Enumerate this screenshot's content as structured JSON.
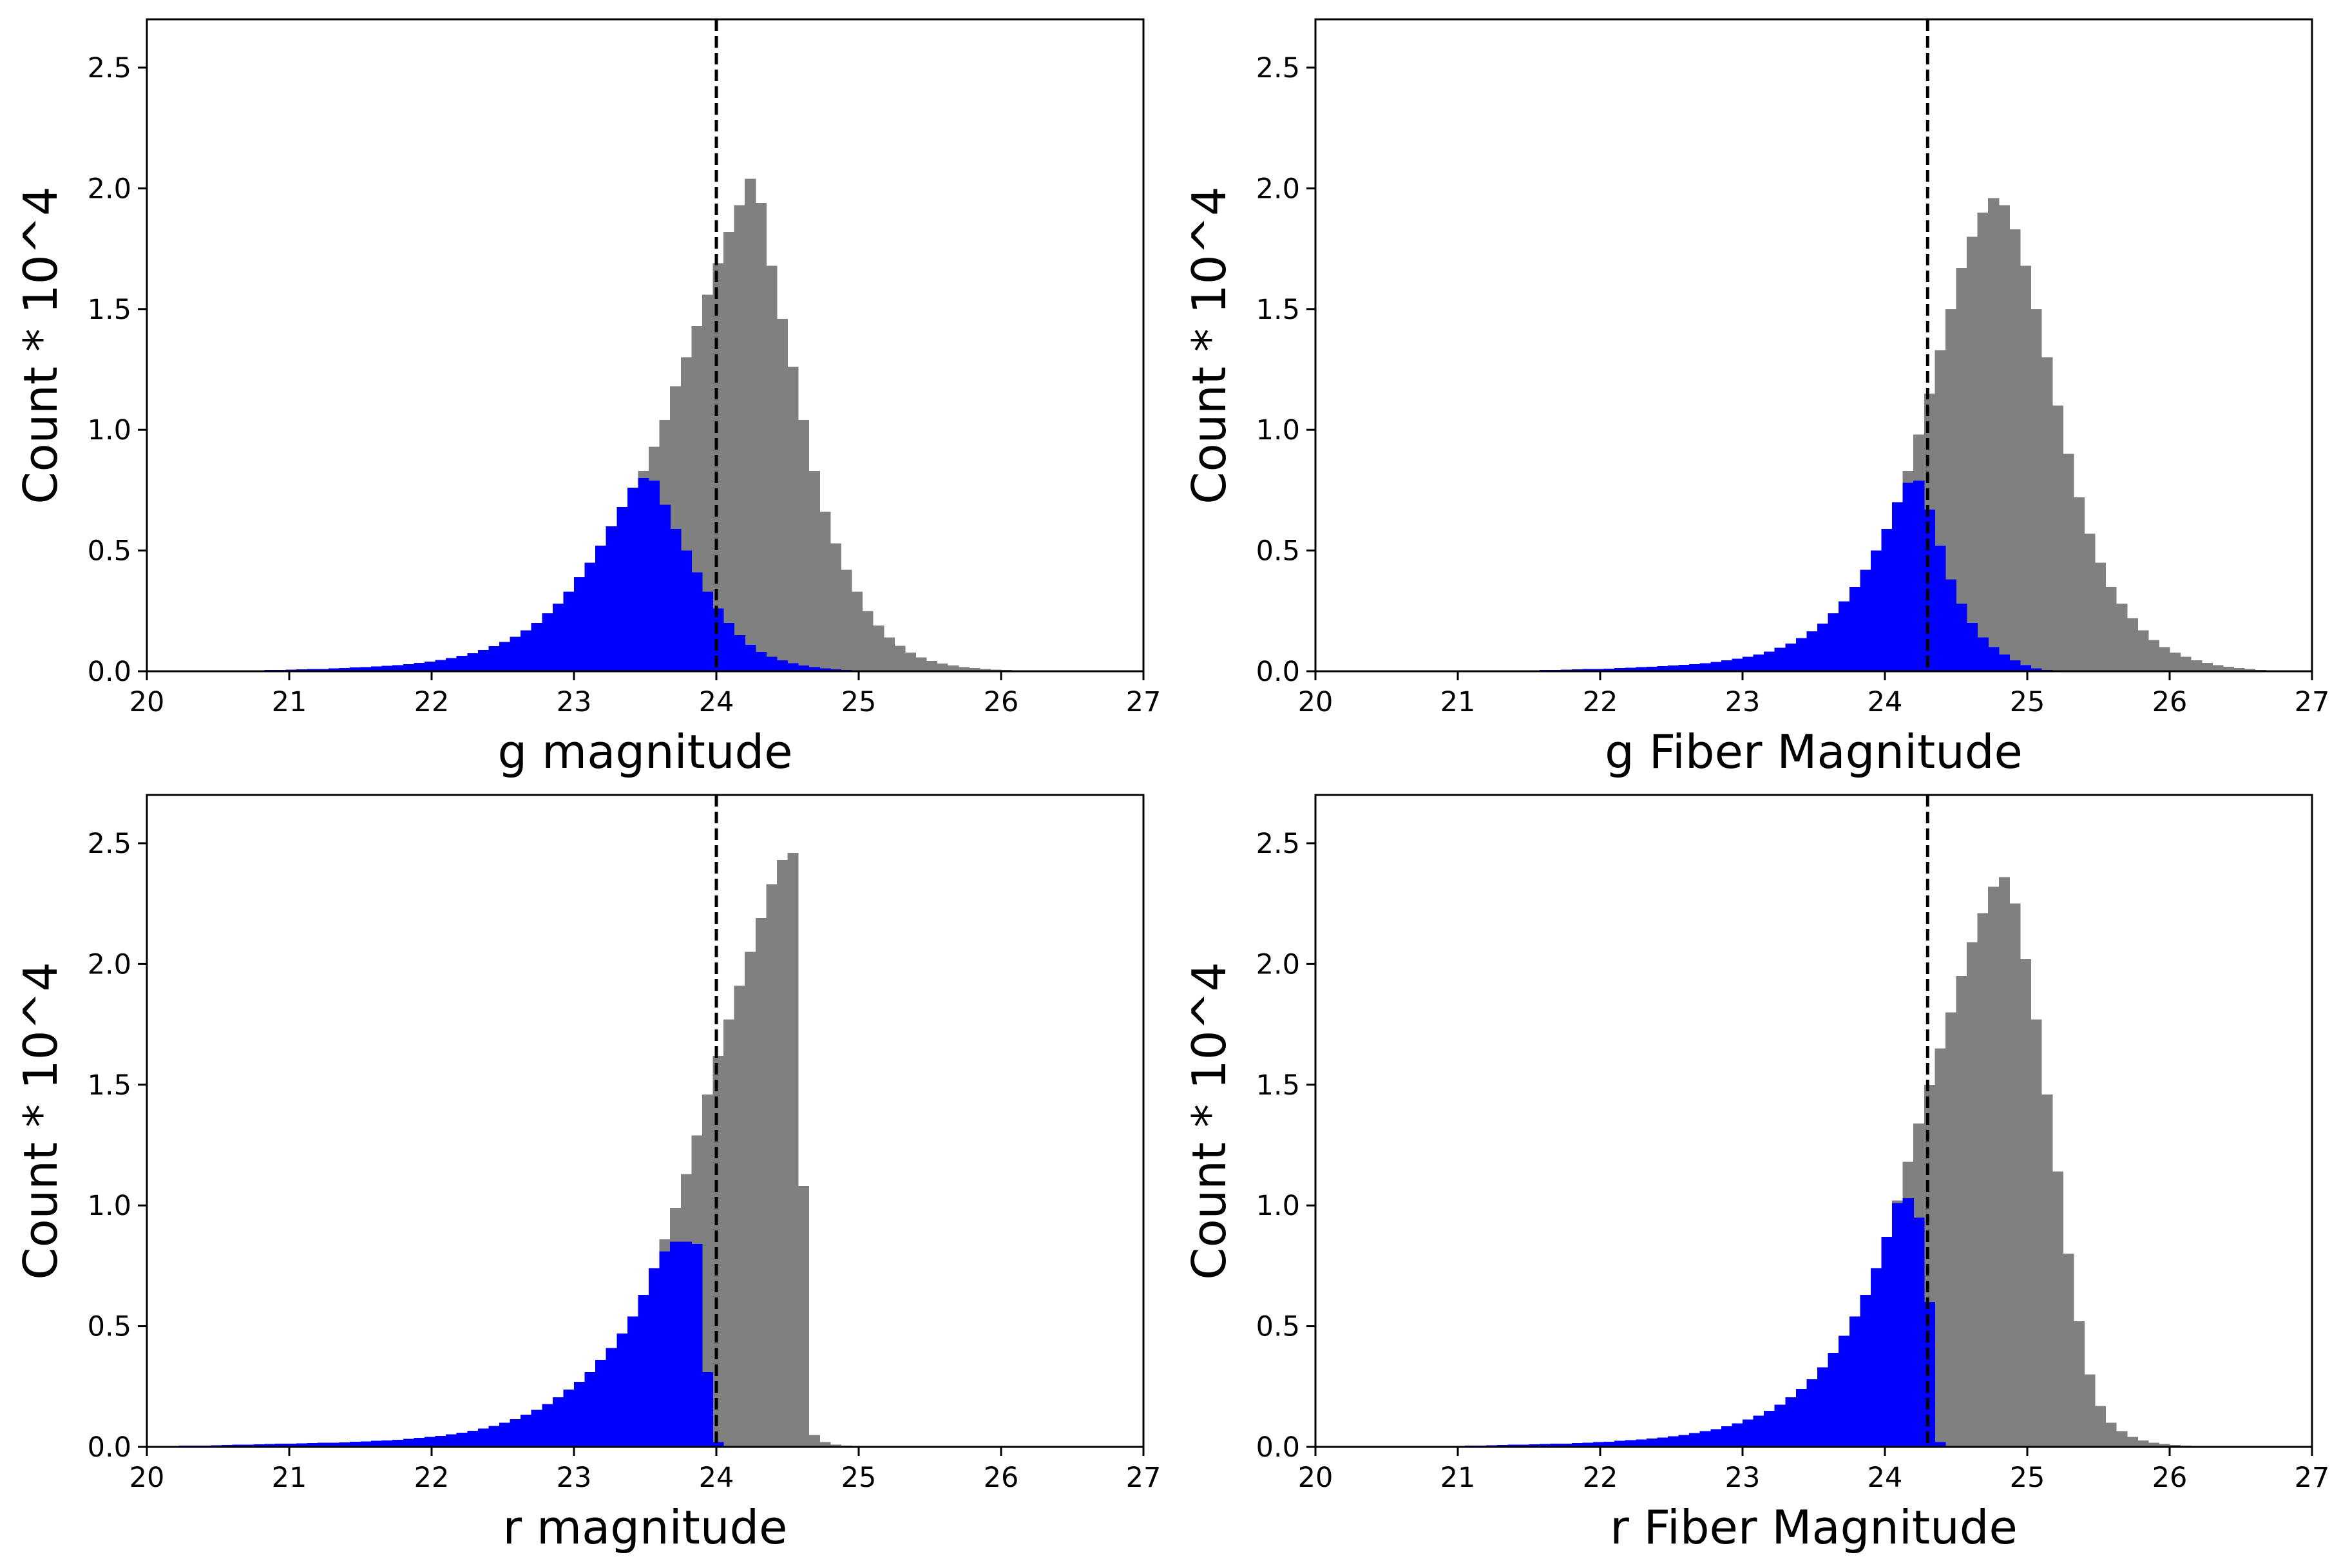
{
  "figure": {
    "layout": "2x2 grid of histograms",
    "colors": {
      "all": "#808080",
      "selected": "#0000ff",
      "cutoff_line": "#000000"
    }
  },
  "chart_data": [
    {
      "type": "bar",
      "subtype": "histogram",
      "xlabel": "g magnitude",
      "ylabel": "Count * 10^4",
      "xlim": [
        20,
        27
      ],
      "ylim": [
        0,
        2.7
      ],
      "xticks": [
        "20",
        "21",
        "22",
        "23",
        "24",
        "25",
        "26",
        "27"
      ],
      "yticks": [
        "0.0",
        "0.5",
        "1.0",
        "1.5",
        "2.0",
        "2.5"
      ],
      "cutoff": 24.0,
      "bin_start": 20.0,
      "bin_width": 0.075,
      "grid": false,
      "series": [
        {
          "color": "#808080",
          "values": [
            0,
            0,
            0,
            0,
            0,
            0,
            0,
            0,
            0.003,
            0.003,
            0.004,
            0.005,
            0.006,
            0.007,
            0.008,
            0.009,
            0.01,
            0.012,
            0.014,
            0.016,
            0.018,
            0.02,
            0.023,
            0.026,
            0.03,
            0.035,
            0.04,
            0.047,
            0.055,
            0.064,
            0.075,
            0.088,
            0.104,
            0.122,
            0.143,
            0.17,
            0.2,
            0.24,
            0.28,
            0.33,
            0.39,
            0.45,
            0.52,
            0.6,
            0.68,
            0.76,
            0.83,
            0.93,
            1.04,
            1.18,
            1.3,
            1.43,
            1.56,
            1.69,
            1.82,
            1.93,
            2.04,
            1.94,
            1.68,
            1.46,
            1.26,
            1.04,
            0.83,
            0.66,
            0.53,
            0.42,
            0.33,
            0.25,
            0.19,
            0.14,
            0.105,
            0.078,
            0.058,
            0.043,
            0.032,
            0.024,
            0.018,
            0.013,
            0.01,
            0.007,
            0.005,
            0.004,
            0.003,
            0.002,
            0.002,
            0.001,
            0.001,
            0.001,
            0.001,
            0.001,
            0,
            0,
            0
          ]
        },
        {
          "color": "#0000ff",
          "values": [
            0,
            0,
            0,
            0,
            0,
            0,
            0,
            0,
            0.003,
            0.003,
            0.004,
            0.005,
            0.006,
            0.007,
            0.008,
            0.009,
            0.01,
            0.012,
            0.014,
            0.016,
            0.018,
            0.02,
            0.023,
            0.026,
            0.03,
            0.035,
            0.04,
            0.047,
            0.055,
            0.064,
            0.075,
            0.088,
            0.104,
            0.122,
            0.143,
            0.17,
            0.2,
            0.24,
            0.28,
            0.33,
            0.39,
            0.45,
            0.52,
            0.6,
            0.68,
            0.76,
            0.8,
            0.79,
            0.69,
            0.59,
            0.5,
            0.41,
            0.33,
            0.26,
            0.2,
            0.15,
            0.11,
            0.08,
            0.06,
            0.045,
            0.033,
            0.024,
            0.017,
            0.012,
            0.008,
            0.005,
            0.003,
            0.002,
            0.001,
            0.001,
            0,
            0,
            0,
            0,
            0,
            0,
            0,
            0,
            0,
            0,
            0,
            0,
            0,
            0,
            0,
            0,
            0,
            0,
            0,
            0,
            0,
            0,
            0
          ]
        }
      ]
    },
    {
      "type": "bar",
      "subtype": "histogram",
      "xlabel": "g Fiber Magnitude",
      "ylabel": "Count * 10^4",
      "xlim": [
        20,
        27
      ],
      "ylim": [
        0,
        2.7
      ],
      "xticks": [
        "20",
        "21",
        "22",
        "23",
        "24",
        "25",
        "26",
        "27"
      ],
      "yticks": [
        "0.0",
        "0.5",
        "1.0",
        "1.5",
        "2.0",
        "2.5"
      ],
      "cutoff": 24.3,
      "bin_start": 20.0,
      "bin_width": 0.075,
      "grid": false,
      "series": [
        {
          "color": "#808080",
          "values": [
            0,
            0,
            0,
            0,
            0,
            0,
            0,
            0,
            0,
            0,
            0,
            0,
            0,
            0,
            0,
            0,
            0,
            0,
            0.002,
            0.003,
            0.004,
            0.005,
            0.006,
            0.007,
            0.008,
            0.009,
            0.01,
            0.011,
            0.013,
            0.015,
            0.017,
            0.019,
            0.021,
            0.024,
            0.027,
            0.03,
            0.034,
            0.039,
            0.045,
            0.052,
            0.06,
            0.07,
            0.082,
            0.097,
            0.115,
            0.138,
            0.165,
            0.198,
            0.24,
            0.29,
            0.35,
            0.42,
            0.5,
            0.59,
            0.7,
            0.83,
            0.98,
            1.15,
            1.33,
            1.5,
            1.67,
            1.8,
            1.9,
            1.96,
            1.93,
            1.83,
            1.68,
            1.5,
            1.3,
            1.1,
            0.9,
            0.72,
            0.57,
            0.45,
            0.35,
            0.28,
            0.22,
            0.17,
            0.13,
            0.1,
            0.077,
            0.06,
            0.046,
            0.035,
            0.026,
            0.019,
            0.013,
            0.009,
            0.006,
            0.004,
            0.002,
            0.001,
            0.001
          ]
        },
        {
          "color": "#0000ff",
          "values": [
            0,
            0,
            0,
            0,
            0,
            0,
            0,
            0,
            0,
            0,
            0,
            0,
            0,
            0,
            0,
            0,
            0,
            0,
            0.002,
            0.003,
            0.004,
            0.005,
            0.006,
            0.007,
            0.008,
            0.009,
            0.01,
            0.011,
            0.013,
            0.015,
            0.017,
            0.019,
            0.021,
            0.024,
            0.027,
            0.03,
            0.034,
            0.039,
            0.045,
            0.052,
            0.06,
            0.07,
            0.082,
            0.097,
            0.115,
            0.138,
            0.165,
            0.198,
            0.24,
            0.29,
            0.35,
            0.42,
            0.5,
            0.59,
            0.7,
            0.78,
            0.79,
            0.67,
            0.52,
            0.38,
            0.28,
            0.2,
            0.14,
            0.1,
            0.07,
            0.045,
            0.025,
            0.012,
            0.006,
            0.003,
            0.001,
            0,
            0,
            0,
            0,
            0,
            0,
            0,
            0,
            0,
            0,
            0,
            0,
            0,
            0,
            0,
            0,
            0,
            0,
            0,
            0,
            0,
            0
          ]
        }
      ]
    },
    {
      "type": "bar",
      "subtype": "histogram",
      "xlabel": "r magnitude",
      "ylabel": "Count * 10^4",
      "xlim": [
        20,
        27
      ],
      "ylim": [
        0,
        2.7
      ],
      "xticks": [
        "20",
        "21",
        "22",
        "23",
        "24",
        "25",
        "26",
        "27"
      ],
      "yticks": [
        "0.0",
        "0.5",
        "1.0",
        "1.5",
        "2.0",
        "2.5"
      ],
      "cutoff": 24.0,
      "bin_start": 20.0,
      "bin_width": 0.075,
      "grid": false,
      "series": [
        {
          "color": "#808080",
          "values": [
            0.003,
            0.003,
            0.004,
            0.005,
            0.006,
            0.006,
            0.007,
            0.008,
            0.009,
            0.01,
            0.011,
            0.012,
            0.013,
            0.014,
            0.015,
            0.016,
            0.017,
            0.018,
            0.019,
            0.021,
            0.023,
            0.025,
            0.027,
            0.03,
            0.033,
            0.037,
            0.041,
            0.046,
            0.052,
            0.059,
            0.067,
            0.076,
            0.087,
            0.1,
            0.115,
            0.133,
            0.154,
            0.178,
            0.206,
            0.238,
            0.27,
            0.31,
            0.36,
            0.41,
            0.47,
            0.54,
            0.63,
            0.74,
            0.86,
            0.99,
            1.13,
            1.29,
            1.46,
            1.62,
            1.77,
            1.91,
            2.05,
            2.19,
            2.33,
            2.43,
            2.46,
            1.08,
            0.05,
            0.02,
            0.01,
            0.006,
            0.003,
            0.002,
            0.001,
            0,
            0,
            0,
            0,
            0,
            0,
            0,
            0,
            0,
            0,
            0,
            0,
            0,
            0,
            0,
            0,
            0,
            0,
            0,
            0,
            0,
            0,
            0,
            0
          ]
        },
        {
          "color": "#0000ff",
          "values": [
            0.003,
            0.003,
            0.004,
            0.005,
            0.006,
            0.006,
            0.007,
            0.008,
            0.009,
            0.01,
            0.011,
            0.012,
            0.013,
            0.014,
            0.015,
            0.016,
            0.017,
            0.018,
            0.019,
            0.021,
            0.023,
            0.025,
            0.027,
            0.03,
            0.033,
            0.037,
            0.041,
            0.046,
            0.052,
            0.059,
            0.067,
            0.076,
            0.087,
            0.1,
            0.115,
            0.133,
            0.154,
            0.178,
            0.206,
            0.238,
            0.27,
            0.31,
            0.36,
            0.41,
            0.47,
            0.54,
            0.63,
            0.74,
            0.81,
            0.85,
            0.85,
            0.84,
            0.31,
            0.02,
            0,
            0,
            0,
            0,
            0,
            0,
            0,
            0,
            0,
            0,
            0,
            0,
            0,
            0,
            0,
            0,
            0,
            0,
            0,
            0,
            0,
            0,
            0,
            0,
            0,
            0,
            0,
            0,
            0,
            0,
            0,
            0,
            0,
            0,
            0,
            0,
            0,
            0,
            0
          ]
        }
      ]
    },
    {
      "type": "bar",
      "subtype": "histogram",
      "xlabel": "r Fiber Magnitude",
      "ylabel": "Count * 10^4",
      "xlim": [
        20,
        27
      ],
      "ylim": [
        0,
        2.7
      ],
      "xticks": [
        "20",
        "21",
        "22",
        "23",
        "24",
        "25",
        "26",
        "27"
      ],
      "yticks": [
        "0.0",
        "0.5",
        "1.0",
        "1.5",
        "2.0",
        "2.5"
      ],
      "cutoff": 24.3,
      "bin_start": 20.0,
      "bin_width": 0.075,
      "grid": false,
      "series": [
        {
          "color": "#808080",
          "values": [
            0,
            0,
            0,
            0,
            0,
            0,
            0,
            0,
            0,
            0,
            0,
            0,
            0.003,
            0.004,
            0.005,
            0.006,
            0.007,
            0.008,
            0.009,
            0.01,
            0.011,
            0.012,
            0.013,
            0.014,
            0.016,
            0.018,
            0.02,
            0.022,
            0.025,
            0.028,
            0.031,
            0.035,
            0.039,
            0.044,
            0.05,
            0.057,
            0.065,
            0.074,
            0.085,
            0.098,
            0.113,
            0.13,
            0.15,
            0.175,
            0.205,
            0.24,
            0.28,
            0.33,
            0.39,
            0.46,
            0.54,
            0.63,
            0.74,
            0.87,
            1.02,
            1.18,
            1.34,
            1.5,
            1.65,
            1.8,
            1.95,
            2.09,
            2.21,
            2.32,
            2.36,
            2.25,
            2.02,
            1.77,
            1.46,
            1.14,
            0.8,
            0.52,
            0.3,
            0.17,
            0.1,
            0.065,
            0.042,
            0.027,
            0.018,
            0.012,
            0.008,
            0.005,
            0.003,
            0.002,
            0.001,
            0,
            0,
            0,
            0,
            0,
            0,
            0,
            0
          ]
        },
        {
          "color": "#0000ff",
          "values": [
            0,
            0,
            0,
            0,
            0,
            0,
            0,
            0,
            0,
            0,
            0,
            0,
            0.003,
            0.004,
            0.005,
            0.006,
            0.007,
            0.008,
            0.009,
            0.01,
            0.011,
            0.012,
            0.013,
            0.014,
            0.016,
            0.018,
            0.02,
            0.022,
            0.025,
            0.028,
            0.031,
            0.035,
            0.039,
            0.044,
            0.05,
            0.057,
            0.065,
            0.074,
            0.085,
            0.098,
            0.113,
            0.13,
            0.15,
            0.175,
            0.205,
            0.24,
            0.28,
            0.33,
            0.39,
            0.46,
            0.54,
            0.63,
            0.74,
            0.87,
            1.01,
            1.03,
            0.95,
            0.6,
            0.02,
            0,
            0,
            0,
            0,
            0,
            0,
            0,
            0,
            0,
            0,
            0,
            0,
            0,
            0,
            0,
            0,
            0,
            0,
            0,
            0,
            0,
            0,
            0,
            0,
            0,
            0,
            0,
            0,
            0,
            0,
            0,
            0,
            0,
            0
          ]
        }
      ]
    }
  ]
}
